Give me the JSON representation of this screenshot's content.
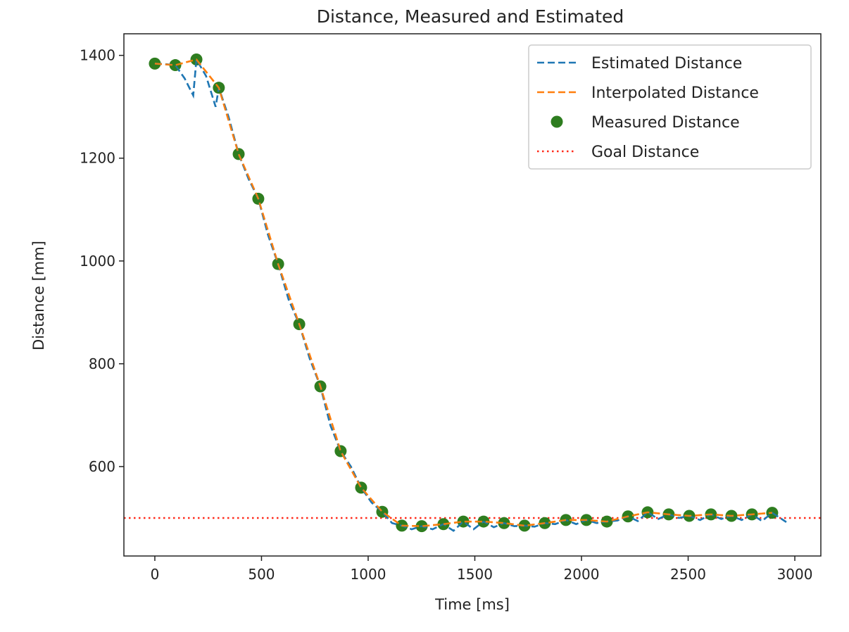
{
  "chart_data": {
    "type": "line",
    "title": "Distance, Measured and Estimated",
    "xlabel": "Time [ms]",
    "ylabel": "Distance [mm]",
    "xlim": [
      -145,
      3122
    ],
    "ylim": [
      426,
      1442
    ],
    "xticks": [
      0,
      500,
      1000,
      1500,
      2000,
      2500,
      3000
    ],
    "yticks": [
      600,
      800,
      1000,
      1200,
      1400
    ],
    "grid": false,
    "legend_position": "top-right",
    "series": [
      {
        "name": "Estimated Distance",
        "style": "dashed",
        "color": "#1f77b4",
        "x": [
          0,
          48,
          96,
          140,
          180,
          195,
          240,
          285,
          300,
          346,
          393,
          439,
          485,
          531,
          578,
          627,
          677,
          726,
          776,
          823,
          871,
          919,
          967,
          1016,
          1066,
          1112,
          1158,
          1204,
          1251,
          1302,
          1353,
          1400,
          1446,
          1494,
          1541,
          1589,
          1637,
          1685,
          1733,
          1780,
          1828,
          1877,
          1927,
          1975,
          2023,
          2071,
          2119,
          2168,
          2218,
          2264,
          2310,
          2360,
          2409,
          2457,
          2505,
          2556,
          2607,
          2655,
          2703,
          2751,
          2799,
          2846,
          2894,
          2960
        ],
        "y": [
          1384,
          1383,
          1381,
          1355,
          1322,
          1392,
          1360,
          1300,
          1337,
          1280,
          1208,
          1160,
          1121,
          1050,
          994,
          925,
          877,
          810,
          756,
          680,
          630,
          600,
          559,
          530,
          512,
          490,
          485,
          478,
          484,
          478,
          488,
          475,
          493,
          478,
          493,
          482,
          490,
          484,
          485,
          483,
          490,
          488,
          496,
          488,
          496,
          490,
          493,
          495,
          503,
          494,
          511,
          498,
          507,
          500,
          504,
          496,
          507,
          498,
          504,
          496,
          507,
          494,
          510,
          492
        ]
      },
      {
        "name": "Interpolated Distance",
        "style": "dashed",
        "color": "#ff7f0e",
        "x": [
          0,
          96,
          195,
          300,
          393,
          485,
          578,
          677,
          776,
          871,
          967,
          1066,
          1158,
          1251,
          1353,
          1446,
          1541,
          1637,
          1733,
          1828,
          1927,
          2023,
          2119,
          2218,
          2310,
          2409,
          2505,
          2607,
          2703,
          2799,
          2894
        ],
        "y": [
          1384,
          1381,
          1392,
          1337,
          1208,
          1121,
          994,
          877,
          756,
          630,
          559,
          512,
          485,
          484,
          488,
          493,
          493,
          490,
          485,
          490,
          496,
          496,
          493,
          503,
          511,
          507,
          504,
          507,
          504,
          507,
          510
        ]
      },
      {
        "name": "Measured Distance",
        "style": "scatter",
        "color": "#2e7d1f",
        "x": [
          0,
          96,
          195,
          300,
          393,
          485,
          578,
          677,
          776,
          871,
          967,
          1066,
          1158,
          1251,
          1353,
          1446,
          1541,
          1637,
          1733,
          1828,
          1927,
          2023,
          2119,
          2218,
          2310,
          2409,
          2505,
          2607,
          2703,
          2799,
          2894
        ],
        "y": [
          1384,
          1381,
          1392,
          1337,
          1208,
          1121,
          994,
          877,
          756,
          630,
          559,
          512,
          485,
          484,
          488,
          493,
          493,
          490,
          485,
          490,
          496,
          496,
          493,
          503,
          511,
          507,
          504,
          507,
          504,
          507,
          510
        ]
      },
      {
        "name": "Goal Distance",
        "style": "dotted",
        "color": "#ff2a1a",
        "y_constant": 500
      }
    ]
  }
}
